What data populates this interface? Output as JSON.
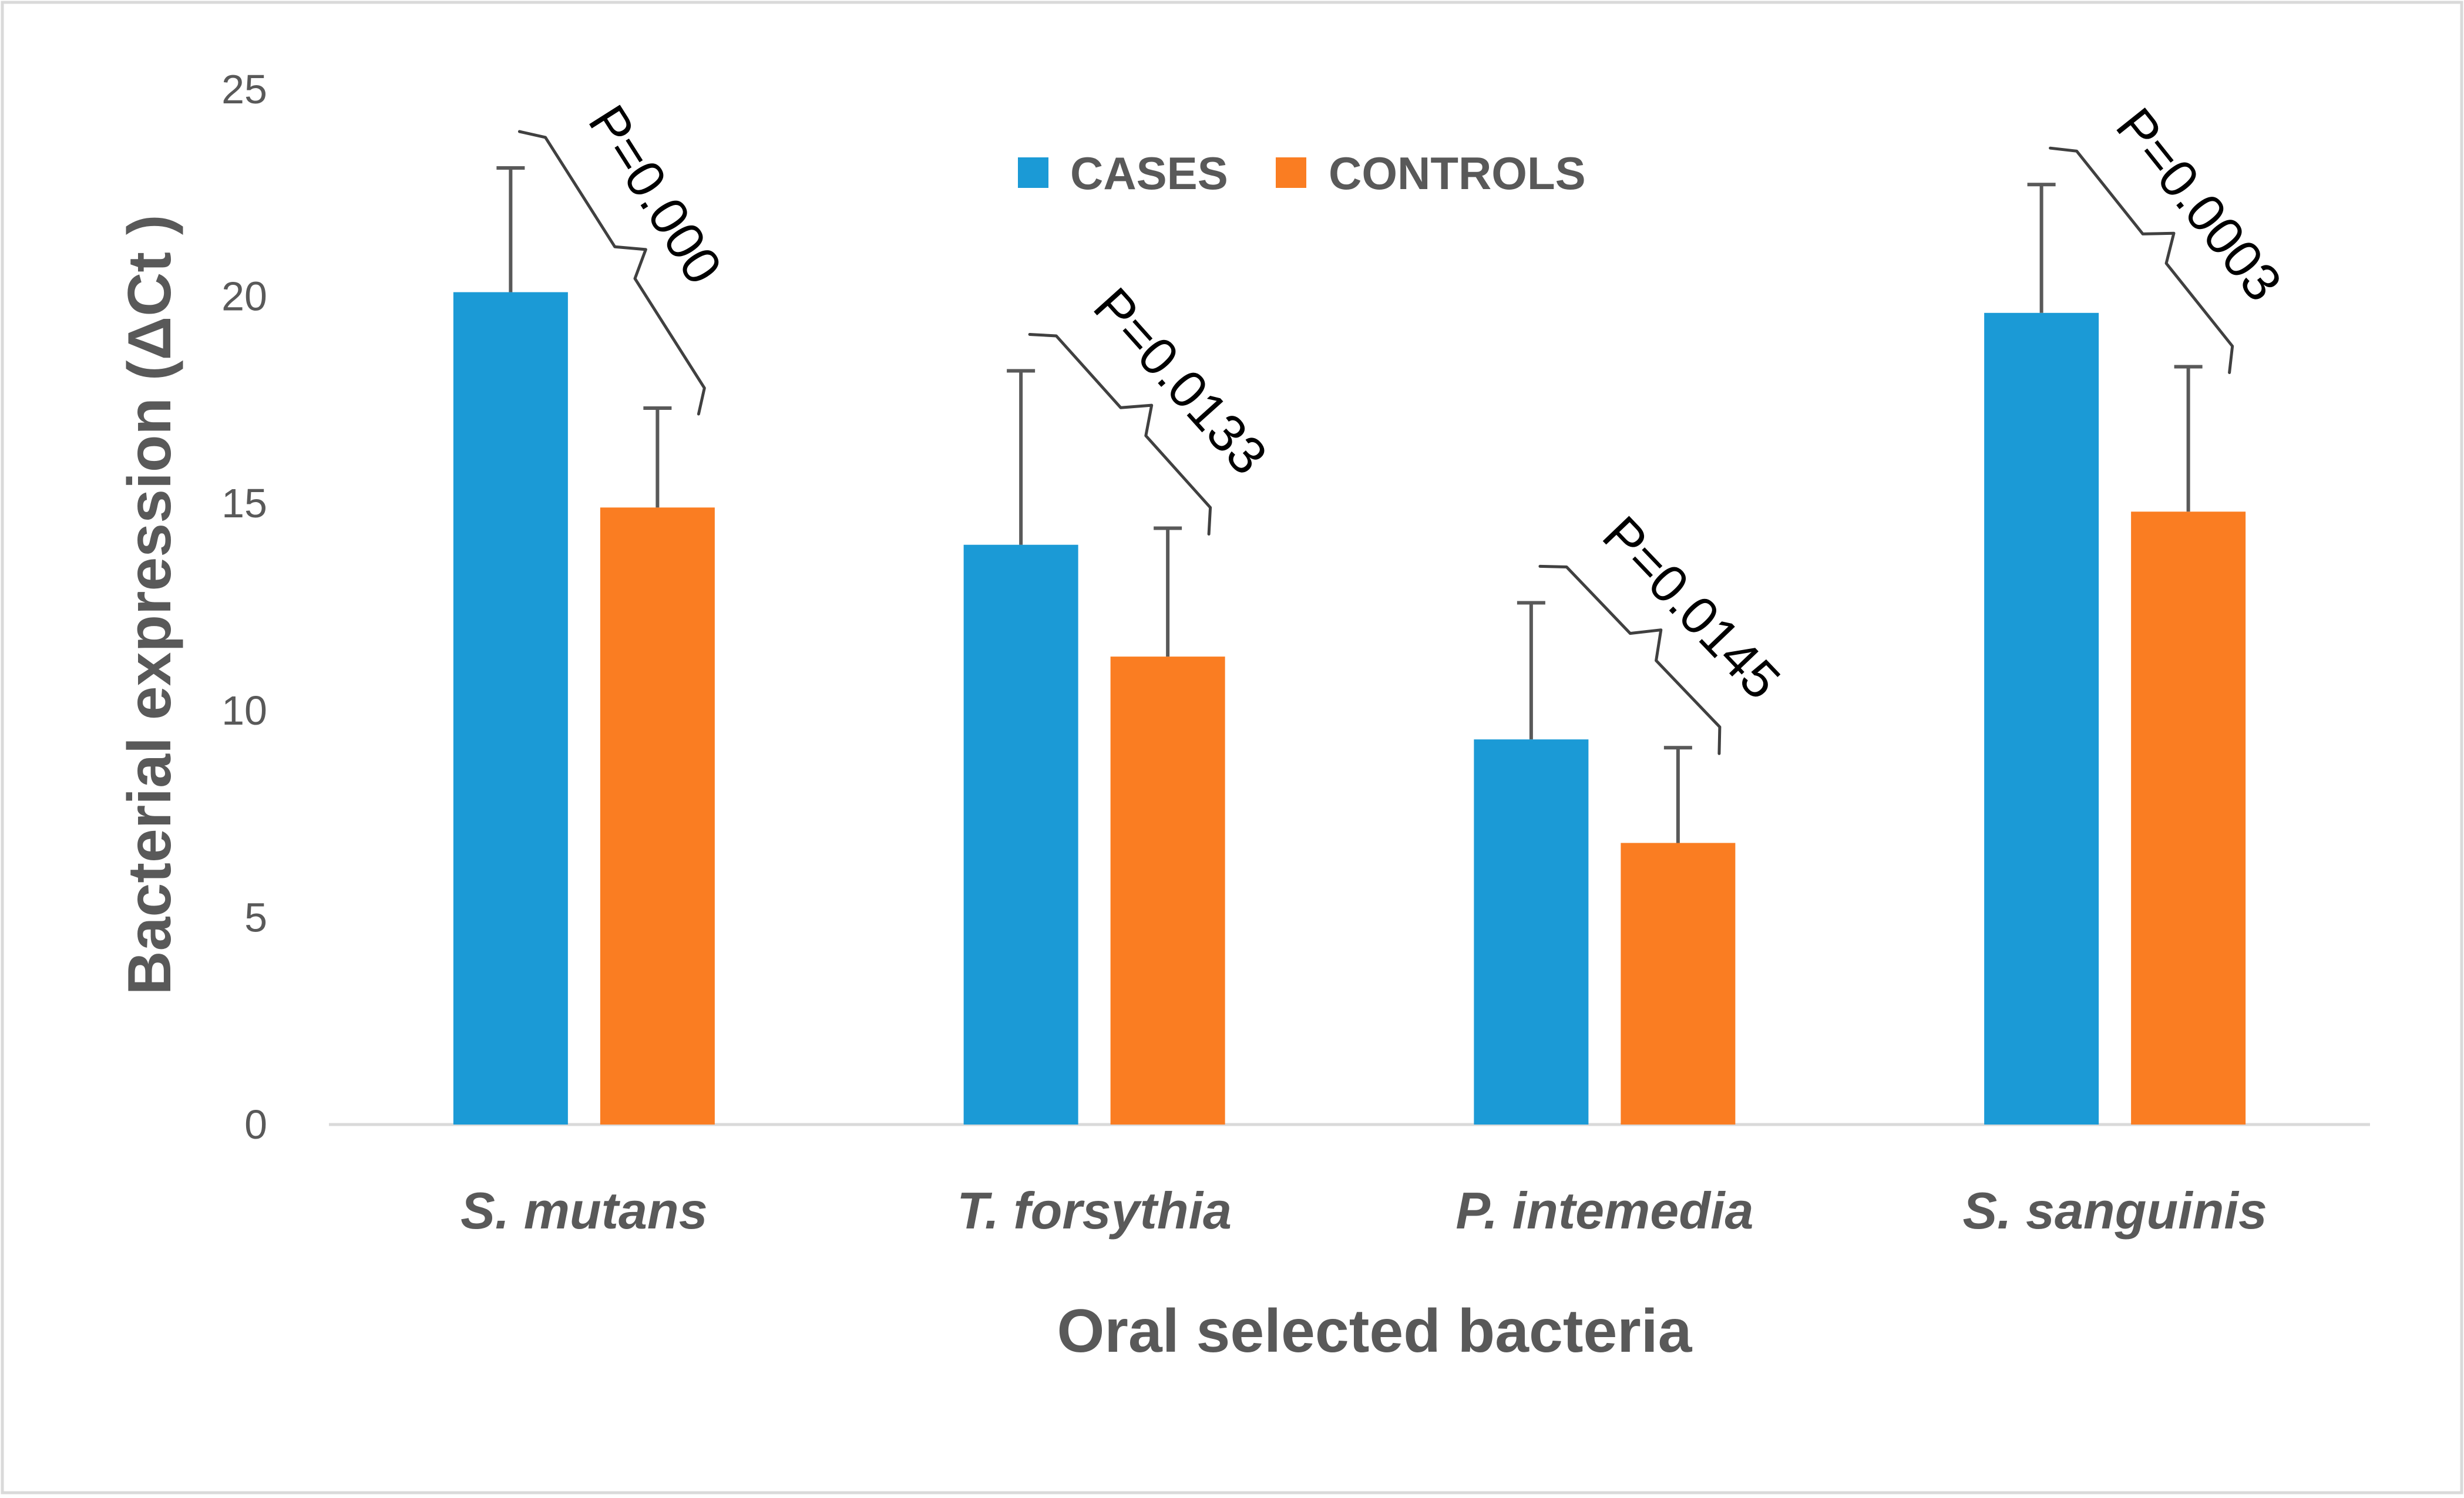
{
  "chart_data": {
    "type": "bar",
    "title": "",
    "xlabel": "Oral selected bacteria",
    "ylabel": "Bacterial expression (ΔCt )",
    "ylim": [
      0,
      25
    ],
    "yticks": [
      0,
      5,
      10,
      15,
      20,
      25
    ],
    "yticks_labels": [
      "0",
      "5",
      "10",
      "15",
      "20",
      "25"
    ],
    "grid": false,
    "legend_position": "top-center",
    "categories": [
      "S. mutans",
      "T. forsythia",
      "P. intemedia",
      "S. sanguinis"
    ],
    "series": [
      {
        "name": "CASES",
        "color": "#1B9AD6",
        "values": [
          20.1,
          14.0,
          9.3,
          19.6
        ],
        "error": [
          3.0,
          4.2,
          3.3,
          3.1
        ]
      },
      {
        "name": "CONTROLS",
        "color": "#FA7D22",
        "values": [
          14.9,
          11.3,
          6.8,
          14.8
        ],
        "error": [
          2.4,
          3.1,
          2.3,
          3.5
        ]
      }
    ],
    "annotations": [
      "P=0.000",
      "P=0.0133",
      "P=0.0145",
      "P=0.0003"
    ]
  }
}
